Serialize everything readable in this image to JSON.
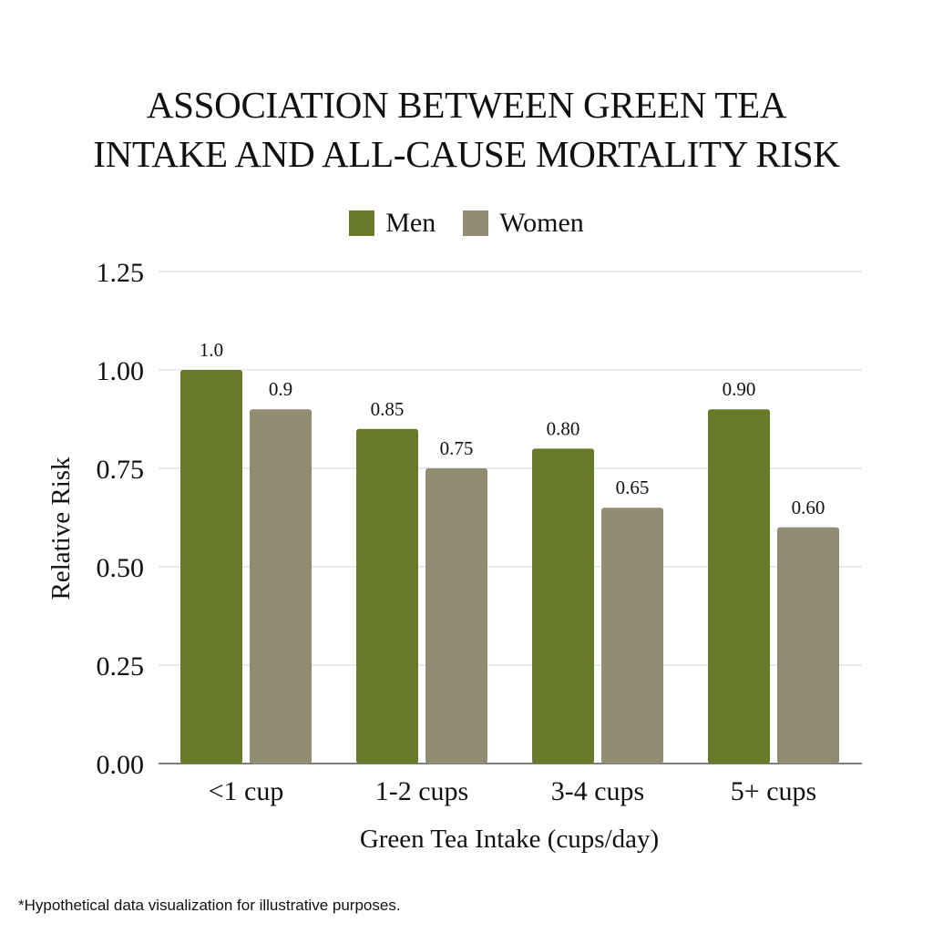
{
  "chart_data": {
    "type": "bar",
    "title_lines": [
      "ASSOCIATION BETWEEN GREEN TEA",
      "INTAKE AND ALL-CAUSE MORTALITY RISK"
    ],
    "categories": [
      "<1 cup",
      "1-2 cups",
      "3-4 cups",
      "5+ cups"
    ],
    "series": [
      {
        "name": "Men",
        "color": "#667a2a",
        "values": [
          1.0,
          0.85,
          0.8,
          0.9
        ],
        "labels": [
          "1.0",
          "0.85",
          "0.80",
          "0.90"
        ]
      },
      {
        "name": "Women",
        "color": "#928d72",
        "values": [
          0.9,
          0.75,
          0.65,
          0.6
        ],
        "labels": [
          "0.9",
          "0.75",
          "0.65",
          "0.60"
        ]
      }
    ],
    "xlabel": "Green Tea Intake (cups/day)",
    "ylabel": "Relative Risk",
    "ylim": [
      0,
      1.25
    ],
    "yticks": [
      "0.00",
      "0.25",
      "0.50",
      "0.75",
      "1.00",
      "1.25"
    ],
    "grid": true,
    "legend_position": "top-center"
  },
  "footnote": "*Hypothetical data visualization for illustrative purposes."
}
